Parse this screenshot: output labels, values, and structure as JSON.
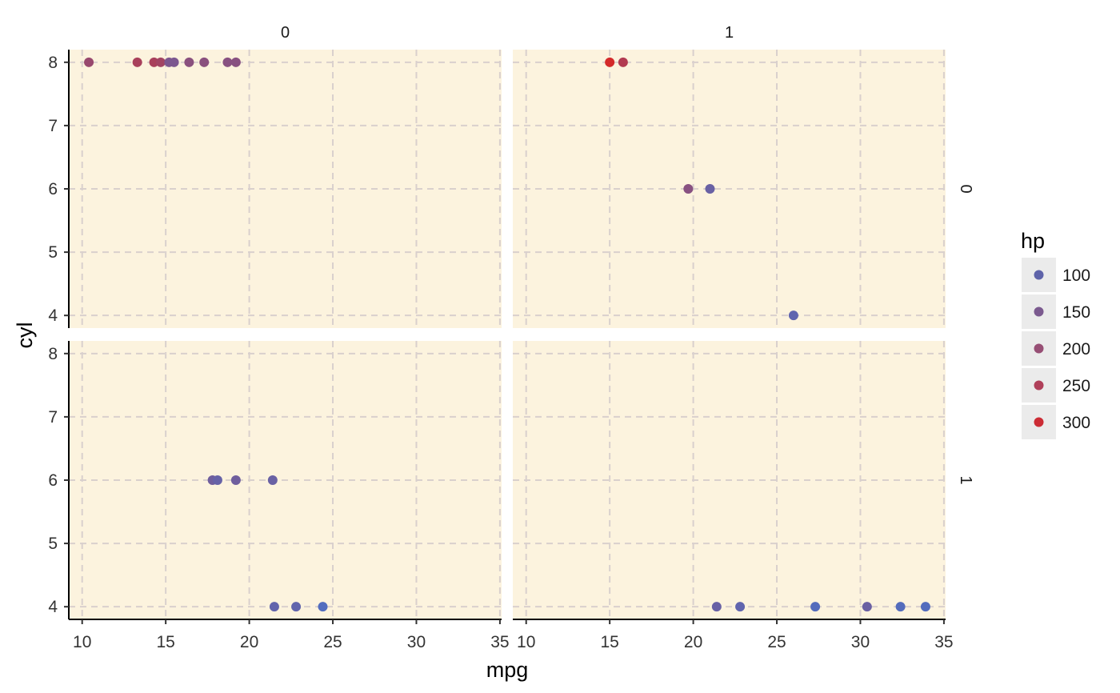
{
  "chart_data": {
    "type": "scatter",
    "facet": {
      "cols": {
        "values": [
          "0",
          "1"
        ]
      },
      "rows": {
        "values": [
          "0",
          "1"
        ]
      }
    },
    "xlabel": "mpg",
    "ylabel": "cyl",
    "xlim": [
      9.2,
      35.1
    ],
    "ylim": [
      3.8,
      8.2
    ],
    "x_ticks": [
      10,
      15,
      20,
      25,
      30,
      35
    ],
    "y_ticks": [
      4,
      5,
      6,
      7,
      8
    ],
    "grid": "dashed",
    "panel_background": "#fcf3de",
    "grid_color": "#d9d0cd",
    "color": {
      "variable": "hp",
      "low_color": "#4d6fc4",
      "high_color": "#d42a2a",
      "range": [
        52,
        335
      ]
    },
    "legend": {
      "title": "hp",
      "position": "right",
      "entries": [
        {
          "label": "100",
          "color": "#5e63a9"
        },
        {
          "label": "150",
          "color": "#7b5a8f"
        },
        {
          "label": "200",
          "color": "#974f75"
        },
        {
          "label": "250",
          "color": "#b0405a"
        },
        {
          "label": "300",
          "color": "#cc2c35"
        }
      ]
    },
    "panels": [
      {
        "col": "0",
        "row": "0",
        "points": [
          {
            "x": 10.4,
            "y": 8,
            "hp": 210
          },
          {
            "x": 13.3,
            "y": 8,
            "hp": 245
          },
          {
            "x": 14.3,
            "y": 8,
            "hp": 245
          },
          {
            "x": 14.7,
            "y": 8,
            "hp": 230
          },
          {
            "x": 15.2,
            "y": 8,
            "hp": 150
          },
          {
            "x": 15.5,
            "y": 8,
            "hp": 150
          },
          {
            "x": 16.4,
            "y": 8,
            "hp": 180
          },
          {
            "x": 17.3,
            "y": 8,
            "hp": 180
          },
          {
            "x": 18.7,
            "y": 8,
            "hp": 175
          },
          {
            "x": 19.2,
            "y": 8,
            "hp": 175
          }
        ]
      },
      {
        "col": "1",
        "row": "0",
        "points": [
          {
            "x": 15.0,
            "y": 8,
            "hp": 335
          },
          {
            "x": 15.8,
            "y": 8,
            "hp": 264
          },
          {
            "x": 19.7,
            "y": 6,
            "hp": 175
          },
          {
            "x": 21.0,
            "y": 6,
            "hp": 110
          },
          {
            "x": 26.0,
            "y": 4,
            "hp": 91
          }
        ]
      },
      {
        "col": "0",
        "row": "1",
        "points": [
          {
            "x": 17.8,
            "y": 6,
            "hp": 123
          },
          {
            "x": 18.1,
            "y": 6,
            "hp": 105
          },
          {
            "x": 19.2,
            "y": 6,
            "hp": 123
          },
          {
            "x": 21.4,
            "y": 6,
            "hp": 110
          },
          {
            "x": 21.5,
            "y": 4,
            "hp": 97
          },
          {
            "x": 22.8,
            "y": 4,
            "hp": 95
          },
          {
            "x": 24.4,
            "y": 4,
            "hp": 62
          }
        ]
      },
      {
        "col": "1",
        "row": "1",
        "points": [
          {
            "x": 21.4,
            "y": 4,
            "hp": 109
          },
          {
            "x": 22.8,
            "y": 4,
            "hp": 93
          },
          {
            "x": 27.3,
            "y": 4,
            "hp": 66
          },
          {
            "x": 30.4,
            "y": 4,
            "hp": 113
          },
          {
            "x": 32.4,
            "y": 4,
            "hp": 66
          },
          {
            "x": 33.9,
            "y": 4,
            "hp": 65
          }
        ]
      }
    ]
  }
}
